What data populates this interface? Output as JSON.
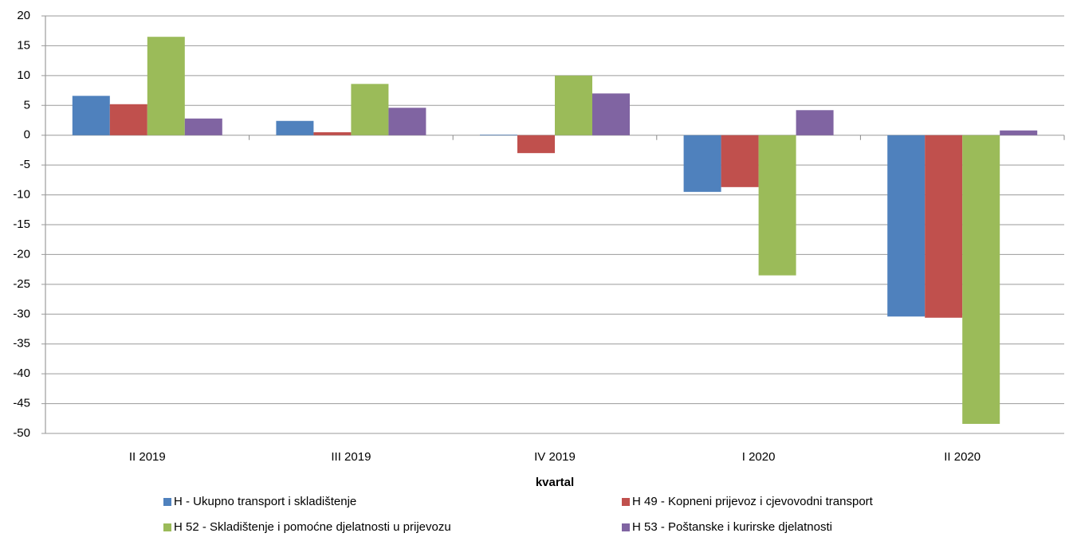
{
  "chart_data": {
    "type": "bar",
    "x_label": "kvartal",
    "categories": [
      "II 2019",
      "III 2019",
      "IV 2019",
      "I 2020",
      "II 2020"
    ],
    "series": [
      {
        "name": "H - Ukupno transport i skladištenje",
        "color": "#4f81bd",
        "values": [
          6.6,
          2.4,
          0.1,
          -9.5,
          -30.4
        ]
      },
      {
        "name": "H 49 - Kopneni prijevoz i cjevovodni transport",
        "color": "#c0504d",
        "values": [
          5.2,
          0.5,
          -3.0,
          -8.7,
          -30.6
        ]
      },
      {
        "name": "H 52 - Skladištenje i pomoćne djelatnosti u prijevozu",
        "color": "#9bbb59",
        "values": [
          16.5,
          8.6,
          10.0,
          -23.5,
          -48.4
        ]
      },
      {
        "name": "H 53 - Poštanske i kurirske djelatnosti",
        "color": "#8064a2",
        "values": [
          2.8,
          4.6,
          7.0,
          4.2,
          0.8
        ]
      }
    ],
    "ylim": [
      -50,
      20
    ],
    "yticks": [
      20,
      15,
      10,
      5,
      0,
      -5,
      -10,
      -15,
      -20,
      -25,
      -30,
      -35,
      -40,
      -45,
      -50
    ],
    "grid": true,
    "legend": "bottom"
  }
}
